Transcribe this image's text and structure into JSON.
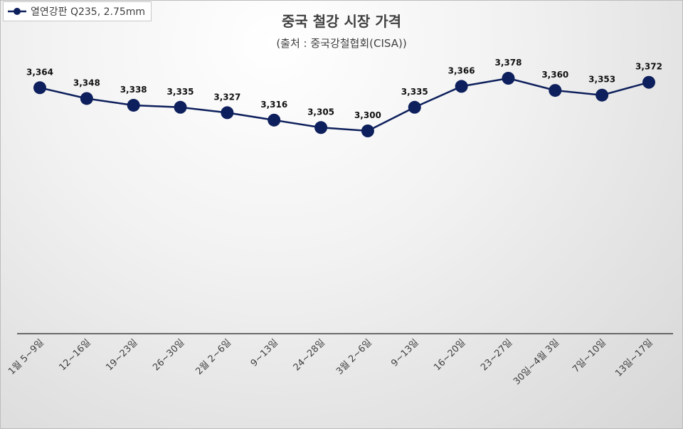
{
  "chart_data": {
    "type": "line",
    "title": "중국 철강 시장 가격",
    "subtitle": "(출처 : 중국강철협회(CISA))",
    "legend": {
      "position": "top-left",
      "entries": [
        "열연강판 Q235, 2.75mm"
      ]
    },
    "categories": [
      "1월 5~9일",
      "12~16일",
      "19~23일",
      "26~30일",
      "2월 2~6일",
      "9~13일",
      "24~28일",
      "3월 2~6일",
      "9~13일",
      "16~20일",
      "23~27일",
      "30일~4월 3일",
      "7일~10일",
      "13일~17일"
    ],
    "series": [
      {
        "name": "열연강판 Q235, 2.75mm",
        "values": [
          3364,
          3348,
          3338,
          3335,
          3327,
          3316,
          3305,
          3300,
          3335,
          3366,
          3378,
          3360,
          3353,
          3372
        ],
        "labels": [
          "3,364",
          "3,348",
          "3,338",
          "3,335",
          "3,327",
          "3,316",
          "3,305",
          "3,300",
          "3,335",
          "3,366",
          "3,378",
          "3,360",
          "3,353",
          "3,372"
        ]
      }
    ],
    "xlabel": "",
    "ylabel": "",
    "grid": false,
    "color": "#0d1f5c"
  }
}
